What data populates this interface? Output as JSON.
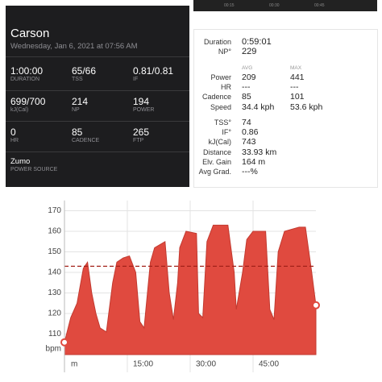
{
  "summary": {
    "name": "Carson",
    "date": "Wednesday, Jan 6, 2021 at 07:56 AM",
    "metrics": [
      {
        "value": "1:00:00",
        "label": "DURATION"
      },
      {
        "value": "65/66",
        "label": "TSS"
      },
      {
        "value": "0.81/0.81",
        "label": "IF"
      },
      {
        "value": "699/700",
        "label": "kJ(Cal)"
      },
      {
        "value": "214",
        "label": "NP"
      },
      {
        "value": "194",
        "label": "POWER"
      },
      {
        "value": "0",
        "label": "HR"
      },
      {
        "value": "85",
        "label": "CADENCE"
      },
      {
        "value": "265",
        "label": "FTP"
      }
    ],
    "power_source": {
      "value": "Zumo",
      "label": "POWER SOURCE"
    }
  },
  "timeline": {
    "labels": [
      "00:15",
      "00:30",
      "00:45"
    ]
  },
  "details": {
    "top": [
      [
        "Duration",
        "0:59:01"
      ],
      [
        "NP°",
        "229"
      ]
    ],
    "header": [
      "AVG",
      "MAX"
    ],
    "compare": [
      [
        "Power",
        "209",
        "441"
      ],
      [
        "HR",
        "---",
        "---"
      ],
      [
        "Cadence",
        "85",
        "101"
      ],
      [
        "Speed",
        "34.4 kph",
        "53.6 kph"
      ]
    ],
    "bottom": [
      [
        "TSS°",
        "74"
      ],
      [
        "IF°",
        "0.86"
      ],
      [
        "kJ(Cal)",
        "743"
      ],
      [
        "Distance",
        "33.93 km"
      ],
      [
        "Elv. Gain",
        "164 m"
      ],
      [
        "Avg Grad.",
        "---%"
      ]
    ]
  },
  "chart_data": {
    "type": "area",
    "color": "#e04a3f",
    "line_color": "#c23a30",
    "x": [
      0,
      1.5,
      3,
      4.5,
      5.5,
      6.5,
      7.5,
      8.5,
      10,
      11.5,
      12.5,
      14,
      15.5,
      17,
      18,
      19,
      20.5,
      21.5,
      24,
      25,
      26,
      27,
      27.5,
      29,
      31.5,
      32,
      33,
      34,
      35.5,
      39,
      40.5,
      41,
      42.5,
      43.5,
      45,
      48,
      49,
      50,
      51,
      52.5,
      56,
      57.5,
      59,
      60
    ],
    "values": [
      106,
      118,
      125,
      142,
      145,
      130,
      120,
      113,
      111,
      135,
      145,
      147,
      148,
      140,
      116,
      113,
      145,
      152,
      155,
      130,
      117,
      135,
      152,
      160,
      159,
      120,
      118,
      155,
      163,
      163,
      140,
      122,
      140,
      156,
      160,
      160,
      122,
      117,
      150,
      160,
      162,
      162,
      140,
      124
    ],
    "reference_line": 143,
    "xlim": [
      0,
      60
    ],
    "xticks": [
      {
        "value": 15,
        "label": "15:00"
      },
      {
        "value": 30,
        "label": "30:00"
      },
      {
        "value": 45,
        "label": "45:00"
      }
    ],
    "x_label": "m",
    "y_label": "bpm",
    "ylim": [
      100,
      175
    ],
    "yticks": [
      110,
      120,
      130,
      140,
      150,
      160,
      170
    ],
    "grid": true
  }
}
